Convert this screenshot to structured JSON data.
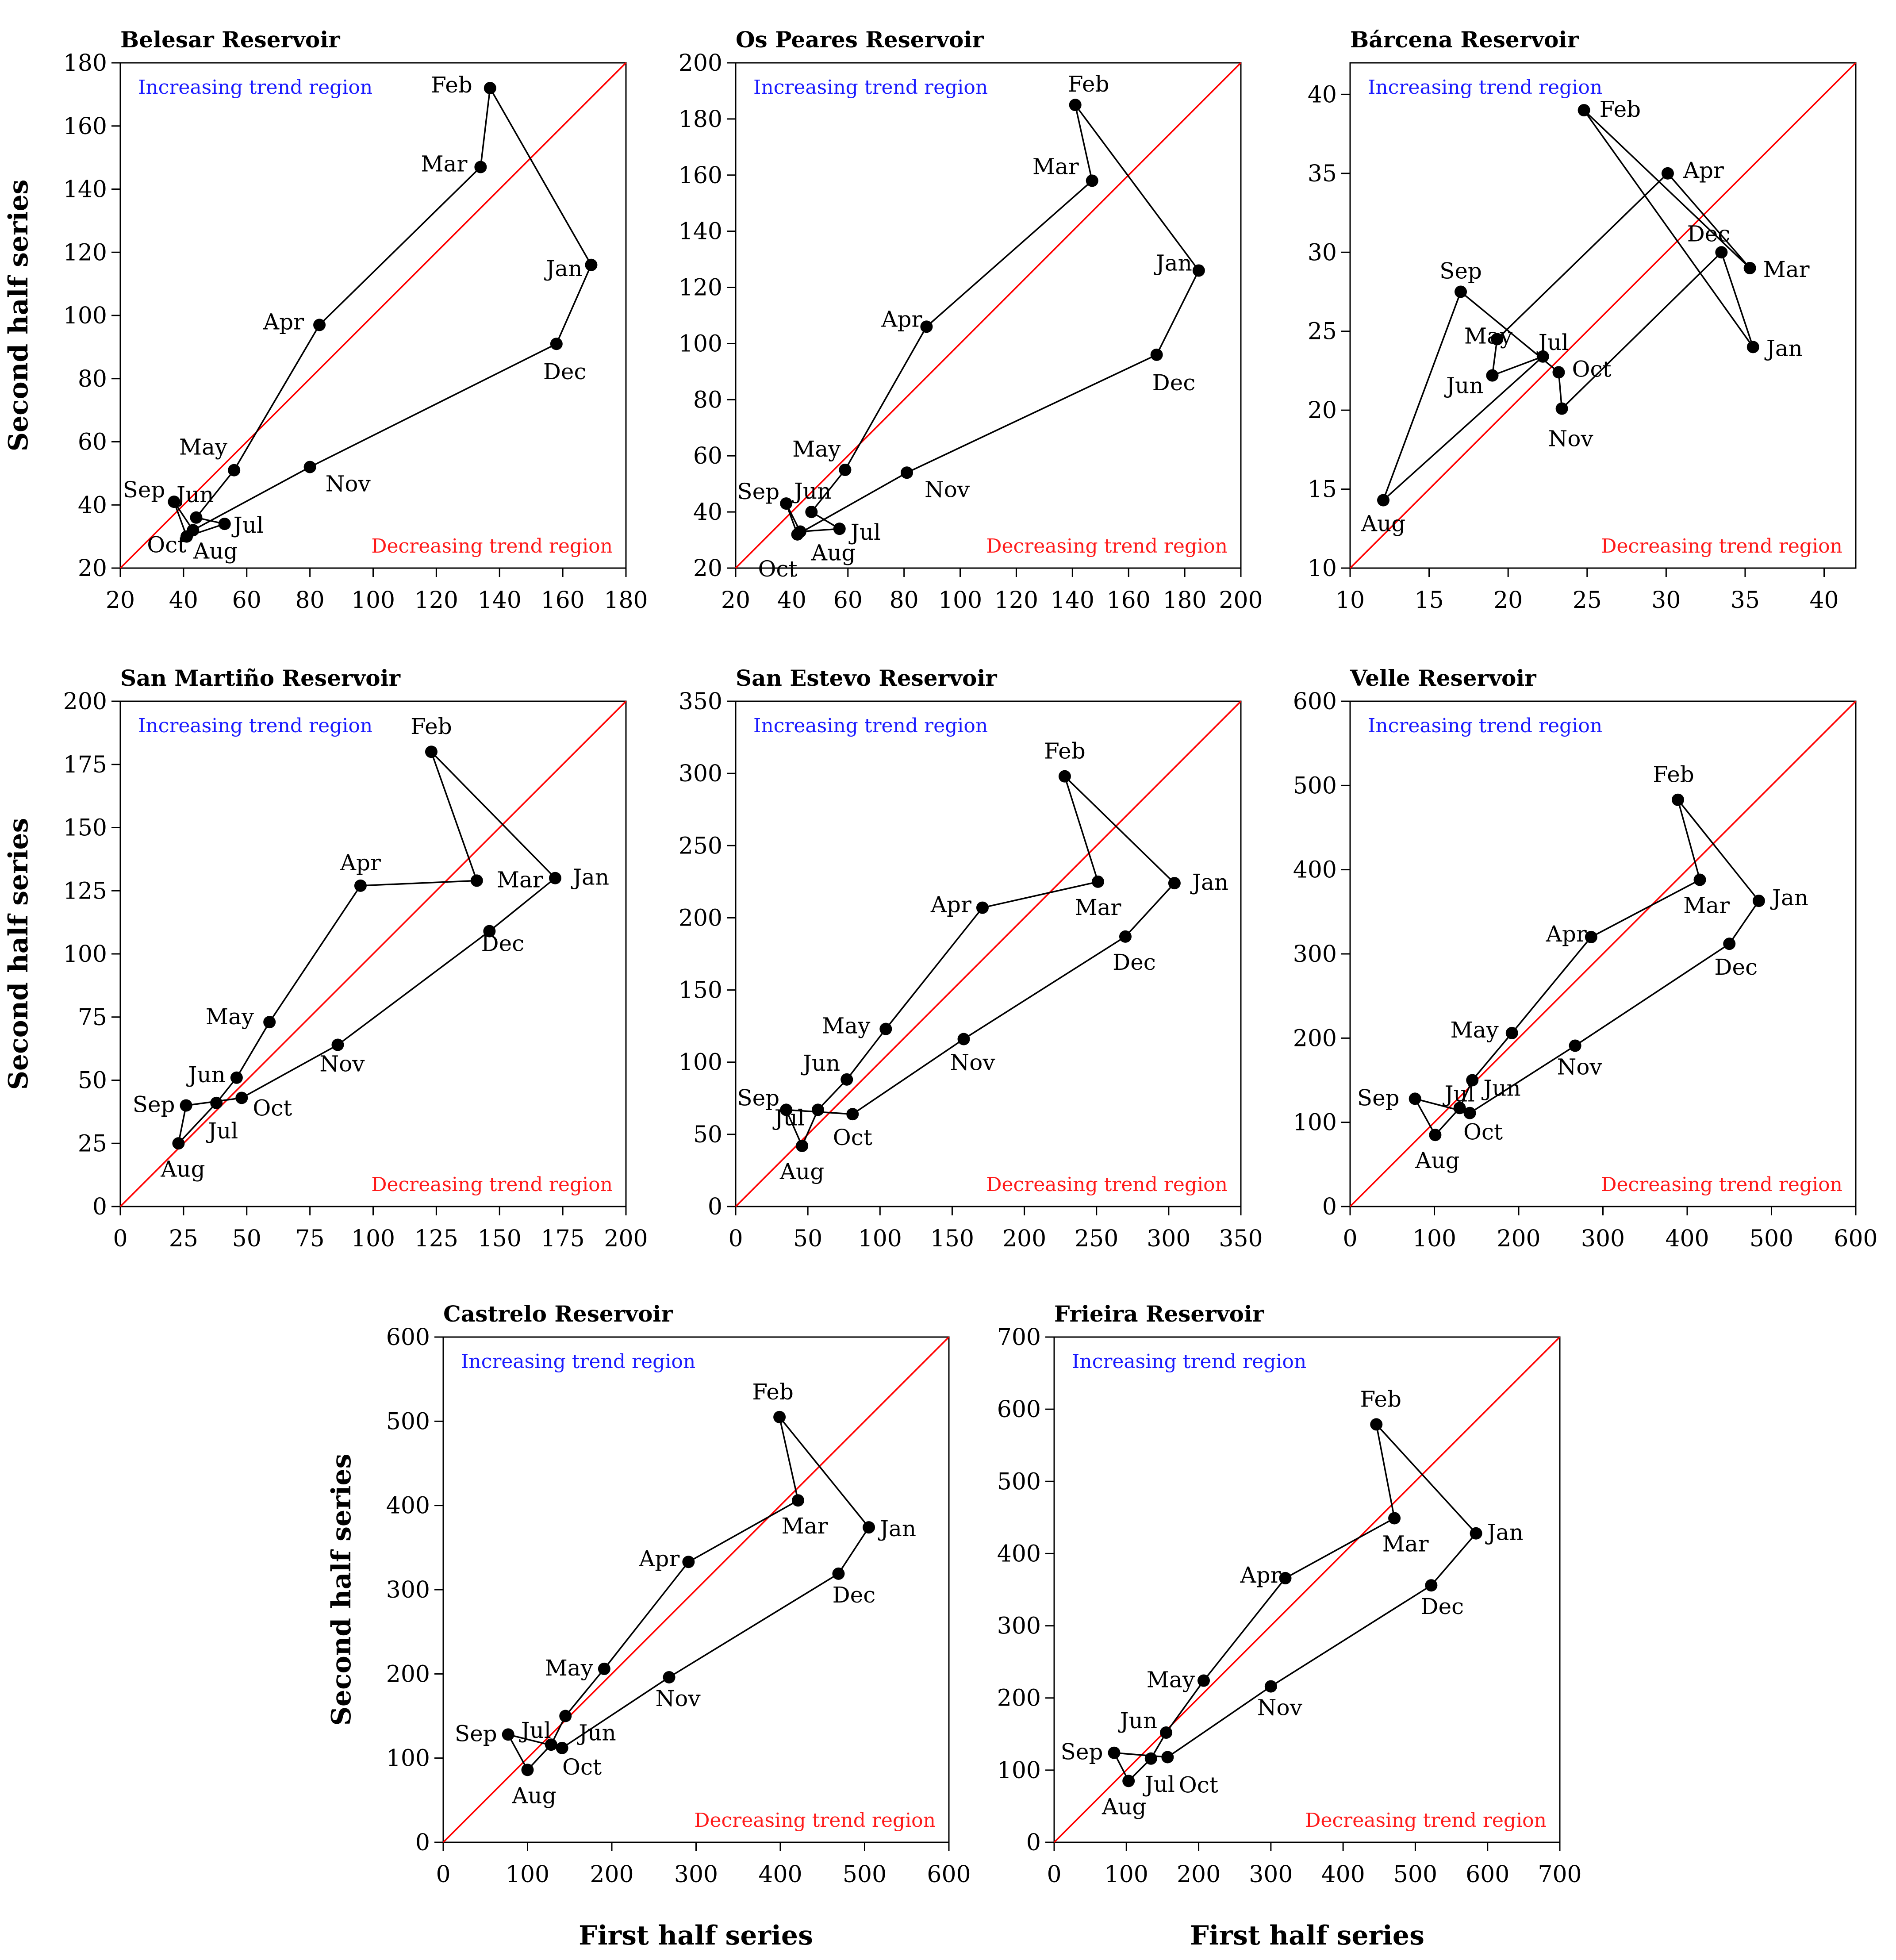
{
  "figure": {
    "ylabel": "Second half series",
    "xlabel": "First half series",
    "increasing_label": "Increasing trend region",
    "decreasing_label": "Decreasing trend region",
    "colors": {
      "line": "#000000",
      "diagonal": "#ff0000",
      "increasing": "#1a1aff",
      "decreasing": "#ff1a1a"
    }
  },
  "chart_data": [
    {
      "type": "scatter",
      "title": "Belesar Reservoir",
      "xlim": [
        20,
        180
      ],
      "ylim": [
        20,
        180
      ],
      "xticks": [
        "20",
        "40",
        "60",
        "80",
        "100",
        "120",
        "140",
        "160",
        "180"
      ],
      "yticks": [
        "20",
        "40",
        "60",
        "80",
        "100",
        "120",
        "140",
        "160",
        "180"
      ],
      "points": [
        {
          "label": "Jan",
          "x": 169,
          "y": 116
        },
        {
          "label": "Feb",
          "x": 137,
          "y": 172
        },
        {
          "label": "Mar",
          "x": 134,
          "y": 147
        },
        {
          "label": "Apr",
          "x": 83,
          "y": 97
        },
        {
          "label": "May",
          "x": 56,
          "y": 51
        },
        {
          "label": "Jun",
          "x": 44,
          "y": 36
        },
        {
          "label": "Jul",
          "x": 53,
          "y": 34
        },
        {
          "label": "Aug",
          "x": 41,
          "y": 30
        },
        {
          "label": "Sep",
          "x": 37,
          "y": 41
        },
        {
          "label": "Oct",
          "x": 43,
          "y": 32
        },
        {
          "label": "Nov",
          "x": 80,
          "y": 52
        },
        {
          "label": "Dec",
          "x": 158,
          "y": 91
        }
      ]
    },
    {
      "type": "scatter",
      "title": "Os Peares Reservoir",
      "xlim": [
        20,
        200
      ],
      "ylim": [
        20,
        200
      ],
      "xticks": [
        "20",
        "40",
        "60",
        "80",
        "100",
        "120",
        "140",
        "160",
        "180",
        "200"
      ],
      "yticks": [
        "20",
        "40",
        "60",
        "80",
        "100",
        "120",
        "140",
        "160",
        "180",
        "200"
      ],
      "points": [
        {
          "label": "Jan",
          "x": 185,
          "y": 126
        },
        {
          "label": "Feb",
          "x": 141,
          "y": 185
        },
        {
          "label": "Mar",
          "x": 147,
          "y": 158
        },
        {
          "label": "Apr",
          "x": 88,
          "y": 106
        },
        {
          "label": "May",
          "x": 59,
          "y": 55
        },
        {
          "label": "Jun",
          "x": 47,
          "y": 40
        },
        {
          "label": "Jul",
          "x": 57,
          "y": 34
        },
        {
          "label": "Aug",
          "x": 43,
          "y": 33
        },
        {
          "label": "Sep",
          "x": 38,
          "y": 43
        },
        {
          "label": "Oct",
          "x": 42,
          "y": 32
        },
        {
          "label": "Nov",
          "x": 81,
          "y": 54
        },
        {
          "label": "Dec",
          "x": 170,
          "y": 96
        }
      ]
    },
    {
      "type": "scatter",
      "title": "Bárcena Reservoir",
      "xlim": [
        10,
        42
      ],
      "ylim": [
        10,
        42
      ],
      "xticks": [
        "10",
        "15",
        "20",
        "25",
        "30",
        "35",
        "40"
      ],
      "yticks": [
        "10",
        "15",
        "20",
        "25",
        "30",
        "35",
        "40"
      ],
      "points": [
        {
          "label": "Jan",
          "x": 35.5,
          "y": 24
        },
        {
          "label": "Feb",
          "x": 24.8,
          "y": 39
        },
        {
          "label": "Mar",
          "x": 35.3,
          "y": 29
        },
        {
          "label": "Apr",
          "x": 30.1,
          "y": 35
        },
        {
          "label": "May",
          "x": 19.3,
          "y": 24.5
        },
        {
          "label": "Jun",
          "x": 19,
          "y": 22.2
        },
        {
          "label": "Jul",
          "x": 22.2,
          "y": 23.4
        },
        {
          "label": "Aug",
          "x": 12.1,
          "y": 14.3
        },
        {
          "label": "Sep",
          "x": 17,
          "y": 27.5
        },
        {
          "label": "Oct",
          "x": 23.2,
          "y": 22.4
        },
        {
          "label": "Nov",
          "x": 23.4,
          "y": 20.1
        },
        {
          "label": "Dec",
          "x": 33.5,
          "y": 30
        }
      ]
    },
    {
      "type": "scatter",
      "title": "San Martiño Reservoir",
      "xlim": [
        0,
        200
      ],
      "ylim": [
        0,
        200
      ],
      "xticks": [
        "0",
        "25",
        "50",
        "75",
        "100",
        "125",
        "150",
        "175",
        "200"
      ],
      "yticks": [
        "0",
        "25",
        "50",
        "75",
        "100",
        "125",
        "150",
        "175",
        "200"
      ],
      "points": [
        {
          "label": "Jan",
          "x": 172,
          "y": 130
        },
        {
          "label": "Feb",
          "x": 123,
          "y": 180
        },
        {
          "label": "Mar",
          "x": 141,
          "y": 129
        },
        {
          "label": "Apr",
          "x": 95,
          "y": 127
        },
        {
          "label": "May",
          "x": 59,
          "y": 73
        },
        {
          "label": "Jun",
          "x": 46,
          "y": 51
        },
        {
          "label": "Jul",
          "x": 38,
          "y": 41
        },
        {
          "label": "Aug",
          "x": 23,
          "y": 25
        },
        {
          "label": "Sep",
          "x": 26,
          "y": 40
        },
        {
          "label": "Oct",
          "x": 48,
          "y": 43
        },
        {
          "label": "Nov",
          "x": 86,
          "y": 64
        },
        {
          "label": "Dec",
          "x": 146,
          "y": 109
        }
      ]
    },
    {
      "type": "scatter",
      "title": "San Estevo Reservoir",
      "xlim": [
        0,
        350
      ],
      "ylim": [
        0,
        350
      ],
      "xticks": [
        "0",
        "50",
        "100",
        "150",
        "200",
        "250",
        "300",
        "350"
      ],
      "yticks": [
        "0",
        "50",
        "100",
        "150",
        "200",
        "250",
        "300",
        "350"
      ],
      "points": [
        {
          "label": "Jan",
          "x": 304,
          "y": 224
        },
        {
          "label": "Feb",
          "x": 228,
          "y": 298
        },
        {
          "label": "Mar",
          "x": 251,
          "y": 225
        },
        {
          "label": "Apr",
          "x": 171,
          "y": 207
        },
        {
          "label": "May",
          "x": 104,
          "y": 123
        },
        {
          "label": "Jun",
          "x": 77,
          "y": 88
        },
        {
          "label": "Jul",
          "x": 57,
          "y": 67
        },
        {
          "label": "Aug",
          "x": 46,
          "y": 42
        },
        {
          "label": "Sep",
          "x": 35,
          "y": 67
        },
        {
          "label": "Oct",
          "x": 81,
          "y": 64
        },
        {
          "label": "Nov",
          "x": 158,
          "y": 116
        },
        {
          "label": "Dec",
          "x": 270,
          "y": 187
        }
      ]
    },
    {
      "type": "scatter",
      "title": "Velle Reservoir",
      "xlim": [
        0,
        600
      ],
      "ylim": [
        0,
        600
      ],
      "xticks": [
        "0",
        "100",
        "200",
        "300",
        "400",
        "500",
        "600"
      ],
      "yticks": [
        "0",
        "100",
        "200",
        "300",
        "400",
        "500",
        "600"
      ],
      "points": [
        {
          "label": "Jan",
          "x": 485,
          "y": 363
        },
        {
          "label": "Feb",
          "x": 389,
          "y": 483
        },
        {
          "label": "Mar",
          "x": 415,
          "y": 388
        },
        {
          "label": "Apr",
          "x": 286,
          "y": 320
        },
        {
          "label": "May",
          "x": 192,
          "y": 206
        },
        {
          "label": "Jun",
          "x": 145,
          "y": 150
        },
        {
          "label": "Jul",
          "x": 130,
          "y": 117
        },
        {
          "label": "Aug",
          "x": 101,
          "y": 85
        },
        {
          "label": "Sep",
          "x": 77,
          "y": 128
        },
        {
          "label": "Oct",
          "x": 142,
          "y": 111
        },
        {
          "label": "Nov",
          "x": 267,
          "y": 191
        },
        {
          "label": "Dec",
          "x": 450,
          "y": 312
        }
      ]
    },
    {
      "type": "scatter",
      "title": "Castrelo Reservoir",
      "xlim": [
        0,
        600
      ],
      "ylim": [
        0,
        600
      ],
      "xticks": [
        "0",
        "100",
        "200",
        "300",
        "400",
        "500",
        "600"
      ],
      "yticks": [
        "0",
        "100",
        "200",
        "300",
        "400",
        "500",
        "600"
      ],
      "points": [
        {
          "label": "Jan",
          "x": 505,
          "y": 374
        },
        {
          "label": "Feb",
          "x": 399,
          "y": 505
        },
        {
          "label": "Mar",
          "x": 421,
          "y": 406
        },
        {
          "label": "Apr",
          "x": 291,
          "y": 333
        },
        {
          "label": "May",
          "x": 191,
          "y": 206
        },
        {
          "label": "Jun",
          "x": 145,
          "y": 150
        },
        {
          "label": "Jul",
          "x": 128,
          "y": 116
        },
        {
          "label": "Aug",
          "x": 100,
          "y": 86
        },
        {
          "label": "Sep",
          "x": 77,
          "y": 128
        },
        {
          "label": "Oct",
          "x": 141,
          "y": 112
        },
        {
          "label": "Nov",
          "x": 268,
          "y": 196
        },
        {
          "label": "Dec",
          "x": 469,
          "y": 319
        }
      ]
    },
    {
      "type": "scatter",
      "title": "Frieira Reservoir",
      "xlim": [
        0,
        700
      ],
      "ylim": [
        0,
        700
      ],
      "xticks": [
        "0",
        "100",
        "200",
        "300",
        "400",
        "500",
        "600",
        "700"
      ],
      "yticks": [
        "0",
        "100",
        "200",
        "300",
        "400",
        "500",
        "600",
        "700"
      ],
      "points": [
        {
          "label": "Jan",
          "x": 584,
          "y": 428
        },
        {
          "label": "Feb",
          "x": 446,
          "y": 579
        },
        {
          "label": "Mar",
          "x": 471,
          "y": 449
        },
        {
          "label": "Apr",
          "x": 320,
          "y": 366
        },
        {
          "label": "May",
          "x": 207,
          "y": 224
        },
        {
          "label": "Jun",
          "x": 155,
          "y": 152
        },
        {
          "label": "Jul",
          "x": 134,
          "y": 116
        },
        {
          "label": "Aug",
          "x": 103,
          "y": 85
        },
        {
          "label": "Sep",
          "x": 83,
          "y": 124
        },
        {
          "label": "Oct",
          "x": 157,
          "y": 118
        },
        {
          "label": "Nov",
          "x": 300,
          "y": 216
        },
        {
          "label": "Dec",
          "x": 522,
          "y": 356
        }
      ]
    }
  ]
}
